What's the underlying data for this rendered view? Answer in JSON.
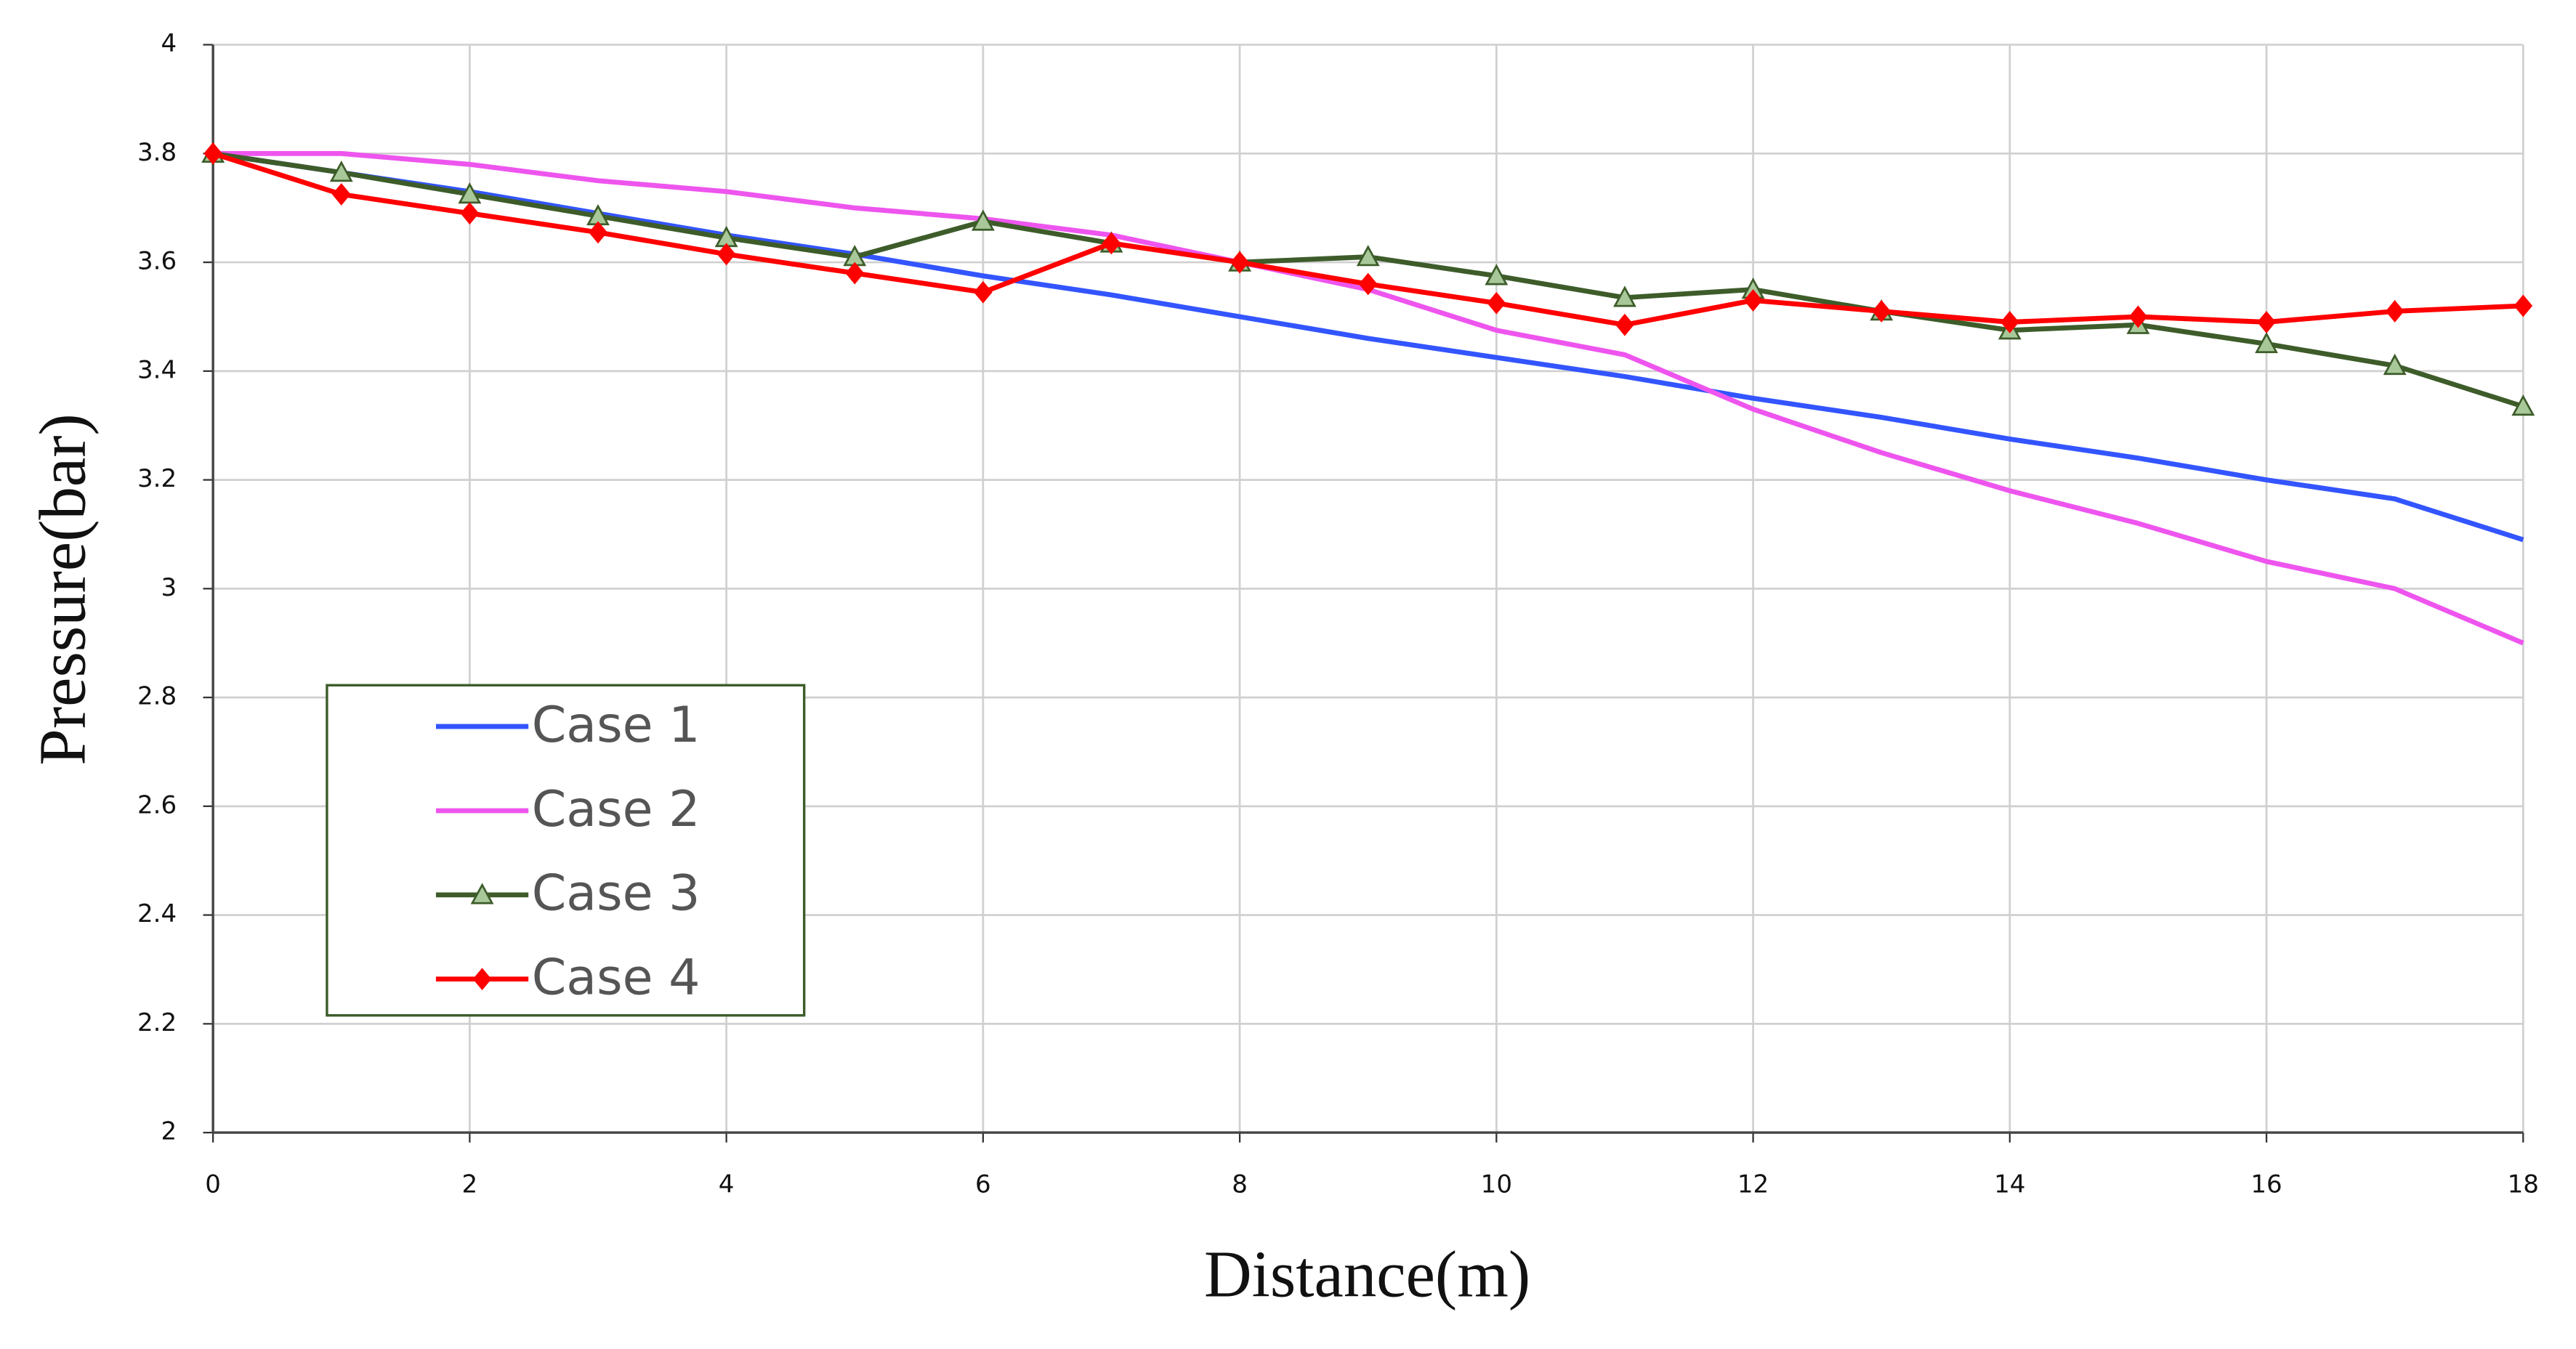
{
  "chart_data": {
    "type": "line",
    "x_label": "Distance(m)",
    "y_label": "Pressure(bar)",
    "x": [
      0,
      1,
      2,
      3,
      4,
      5,
      6,
      7,
      8,
      9,
      10,
      11,
      12,
      13,
      14,
      15,
      16,
      17,
      18
    ],
    "xlim": [
      0,
      18
    ],
    "xticks": [
      0,
      2,
      4,
      6,
      8,
      10,
      12,
      14,
      16,
      18
    ],
    "ylim": [
      2,
      4
    ],
    "yticks": [
      2,
      2.2,
      2.4,
      2.6,
      2.8,
      3,
      3.2,
      3.4,
      3.6,
      3.8,
      4
    ],
    "grid": true,
    "legend": "lower left",
    "series": [
      {
        "name": "Case 1",
        "color": "#3355ff",
        "marker": "none",
        "values": [
          3.8,
          3.765,
          3.73,
          3.69,
          3.65,
          3.615,
          3.575,
          3.54,
          3.5,
          3.46,
          3.425,
          3.39,
          3.35,
          3.315,
          3.275,
          3.24,
          3.2,
          3.165,
          3.09
        ]
      },
      {
        "name": "Case 2",
        "color": "#ee55ee",
        "marker": "none",
        "values": [
          3.8,
          3.8,
          3.78,
          3.75,
          3.73,
          3.7,
          3.68,
          3.65,
          3.6,
          3.55,
          3.475,
          3.43,
          3.33,
          3.25,
          3.18,
          3.12,
          3.05,
          3.0,
          2.9
        ]
      },
      {
        "name": "Case 3",
        "color": "#3d5c2a",
        "marker": "triangle",
        "values": [
          3.8,
          3.765,
          3.725,
          3.685,
          3.645,
          3.61,
          3.675,
          3.635,
          3.6,
          3.61,
          3.575,
          3.535,
          3.55,
          3.51,
          3.475,
          3.485,
          3.45,
          3.41,
          3.335
        ]
      },
      {
        "name": "Case 4",
        "color": "#ff0000",
        "marker": "diamond",
        "values": [
          3.8,
          3.725,
          3.69,
          3.655,
          3.615,
          3.58,
          3.545,
          3.635,
          3.6,
          3.56,
          3.525,
          3.485,
          3.53,
          3.51,
          3.49,
          3.5,
          3.49,
          3.51,
          3.52
        ]
      }
    ]
  }
}
